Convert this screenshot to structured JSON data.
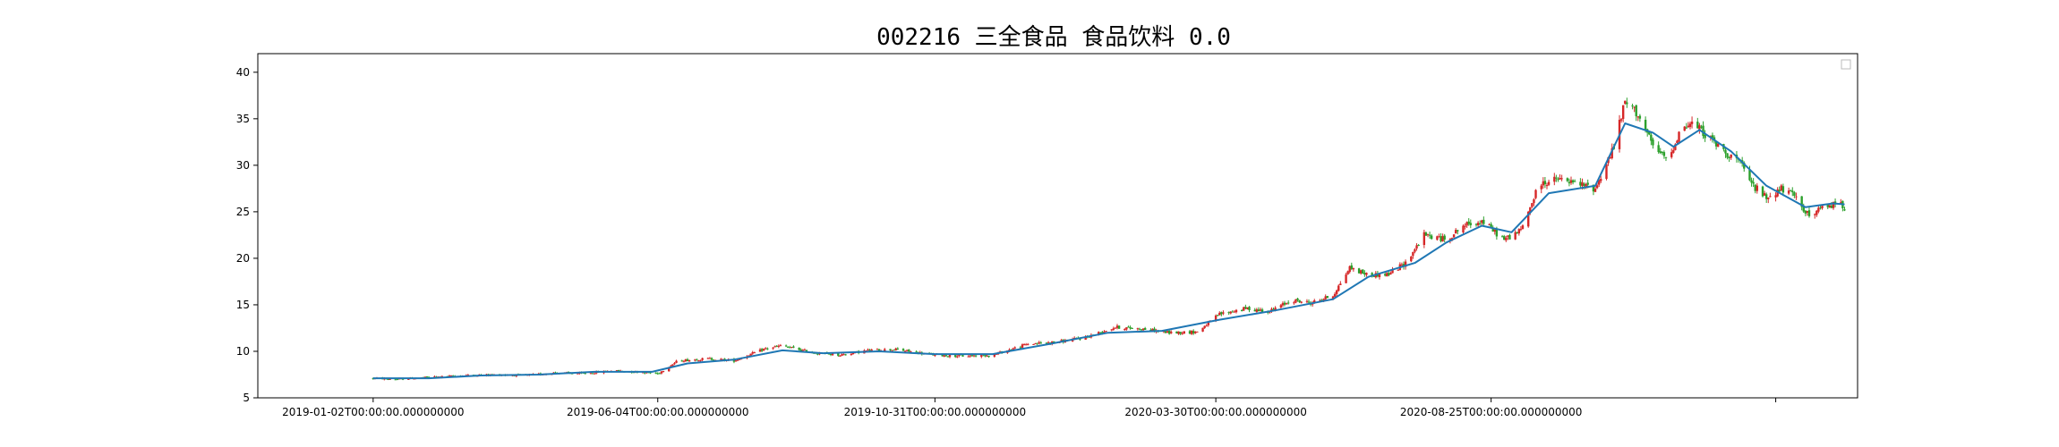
{
  "chart_data": {
    "type": "candlestick",
    "title": "002216 三全食品 食品饮料 0.0",
    "xlabel": "",
    "ylabel": "",
    "ylim": [
      5,
      42
    ],
    "y_ticks": [
      5,
      10,
      15,
      20,
      25,
      30,
      35,
      40
    ],
    "x_ticks": [
      {
        "date": "2019-01-02",
        "label": "2019-01-02T00:00:00.000000000"
      },
      {
        "date": "2019-06-04",
        "label": "2019-06-04T00:00:00.000000000"
      },
      {
        "date": "2019-10-31",
        "label": "2019-10-31T00:00:00.000000000"
      },
      {
        "date": "2020-03-30",
        "label": "2020-03-30T00:00:00.000000000"
      },
      {
        "date": "2020-08-25",
        "label": "2020-08-25T00:00:00.000000000"
      },
      {
        "date": "2021-01-25",
        "label": ""
      }
    ],
    "x_range": [
      "2018-11-01",
      "2021-03-10"
    ],
    "grid": false,
    "legend": "top-right (empty)",
    "colors": {
      "up": "#d62728",
      "down": "#2ca02c",
      "ma": "#1f77b4"
    },
    "series": [
      {
        "kind": "close-trend",
        "points": [
          [
            "2019-01-02",
            7.1
          ],
          [
            "2019-01-15",
            7.0
          ],
          [
            "2019-02-01",
            7.2
          ],
          [
            "2019-02-20",
            7.4
          ],
          [
            "2019-03-10",
            7.5
          ],
          [
            "2019-03-25",
            7.4
          ],
          [
            "2019-04-10",
            7.7
          ],
          [
            "2019-04-25",
            7.6
          ],
          [
            "2019-05-10",
            7.9
          ],
          [
            "2019-05-25",
            7.8
          ],
          [
            "2019-06-04",
            7.6
          ],
          [
            "2019-06-15",
            9.0
          ],
          [
            "2019-07-01",
            9.2
          ],
          [
            "2019-07-15",
            9.0
          ],
          [
            "2019-08-01",
            10.3
          ],
          [
            "2019-08-10",
            10.6
          ],
          [
            "2019-08-25",
            9.9
          ],
          [
            "2019-09-10",
            9.6
          ],
          [
            "2019-09-25",
            10.1
          ],
          [
            "2019-10-10",
            10.2
          ],
          [
            "2019-10-31",
            9.6
          ],
          [
            "2019-11-15",
            9.5
          ],
          [
            "2019-12-01",
            9.6
          ],
          [
            "2019-12-20",
            10.8
          ],
          [
            "2020-01-05",
            11.0
          ],
          [
            "2020-01-20",
            11.5
          ],
          [
            "2020-02-05",
            12.6
          ],
          [
            "2020-02-20",
            12.4
          ],
          [
            "2020-03-05",
            12.0
          ],
          [
            "2020-03-20",
            12.1
          ],
          [
            "2020-04-01",
            14.0
          ],
          [
            "2020-04-15",
            14.6
          ],
          [
            "2020-04-28",
            14.3
          ],
          [
            "2020-05-10",
            15.5
          ],
          [
            "2020-05-20",
            15.2
          ],
          [
            "2020-06-01",
            16.0
          ],
          [
            "2020-06-10",
            19.0
          ],
          [
            "2020-06-20",
            18.2
          ],
          [
            "2020-07-01",
            18.3
          ],
          [
            "2020-07-10",
            19.5
          ],
          [
            "2020-07-20",
            22.5
          ],
          [
            "2020-08-01",
            22.0
          ],
          [
            "2020-08-10",
            23.5
          ],
          [
            "2020-08-20",
            24.0
          ],
          [
            "2020-09-01",
            22.0
          ],
          [
            "2020-09-10",
            23.0
          ],
          [
            "2020-09-20",
            28.0
          ],
          [
            "2020-09-30",
            28.5
          ],
          [
            "2020-10-10",
            28.0
          ],
          [
            "2020-10-20",
            27.5
          ],
          [
            "2020-10-30",
            32.0
          ],
          [
            "2020-11-05",
            36.8
          ],
          [
            "2020-11-12",
            35.5
          ],
          [
            "2020-11-20",
            32.0
          ],
          [
            "2020-11-28",
            30.5
          ],
          [
            "2020-12-05",
            34.0
          ],
          [
            "2020-12-12",
            34.5
          ],
          [
            "2020-12-20",
            33.0
          ],
          [
            "2020-12-28",
            31.5
          ],
          [
            "2021-01-05",
            30.5
          ],
          [
            "2021-01-12",
            28.0
          ],
          [
            "2021-01-20",
            26.5
          ],
          [
            "2021-01-28",
            27.5
          ],
          [
            "2021-02-05",
            26.5
          ],
          [
            "2021-02-12",
            24.5
          ],
          [
            "2021-02-20",
            25.5
          ],
          [
            "2021-02-28",
            26.0
          ],
          [
            "2021-03-03",
            25.5
          ]
        ]
      },
      {
        "kind": "moving-average",
        "points": [
          [
            "2019-01-02",
            7.1
          ],
          [
            "2019-02-01",
            7.1
          ],
          [
            "2019-03-01",
            7.4
          ],
          [
            "2019-04-01",
            7.5
          ],
          [
            "2019-05-01",
            7.8
          ],
          [
            "2019-06-01",
            7.8
          ],
          [
            "2019-06-20",
            8.7
          ],
          [
            "2019-07-15",
            9.1
          ],
          [
            "2019-08-10",
            10.1
          ],
          [
            "2019-09-01",
            9.8
          ],
          [
            "2019-10-01",
            10.0
          ],
          [
            "2019-10-31",
            9.7
          ],
          [
            "2019-12-01",
            9.7
          ],
          [
            "2020-01-01",
            10.8
          ],
          [
            "2020-02-01",
            12.0
          ],
          [
            "2020-03-01",
            12.2
          ],
          [
            "2020-04-01",
            13.4
          ],
          [
            "2020-05-01",
            14.4
          ],
          [
            "2020-06-01",
            15.6
          ],
          [
            "2020-06-20",
            18.0
          ],
          [
            "2020-07-15",
            19.5
          ],
          [
            "2020-08-01",
            21.7
          ],
          [
            "2020-08-20",
            23.5
          ],
          [
            "2020-09-05",
            22.8
          ],
          [
            "2020-09-25",
            27.0
          ],
          [
            "2020-10-20",
            27.8
          ],
          [
            "2020-11-05",
            34.5
          ],
          [
            "2020-11-20",
            33.5
          ],
          [
            "2020-12-01",
            32.0
          ],
          [
            "2020-12-15",
            33.8
          ],
          [
            "2021-01-01",
            31.5
          ],
          [
            "2021-01-20",
            27.8
          ],
          [
            "2021-02-10",
            25.5
          ],
          [
            "2021-02-25",
            25.9
          ],
          [
            "2021-03-03",
            25.8
          ]
        ]
      }
    ]
  }
}
